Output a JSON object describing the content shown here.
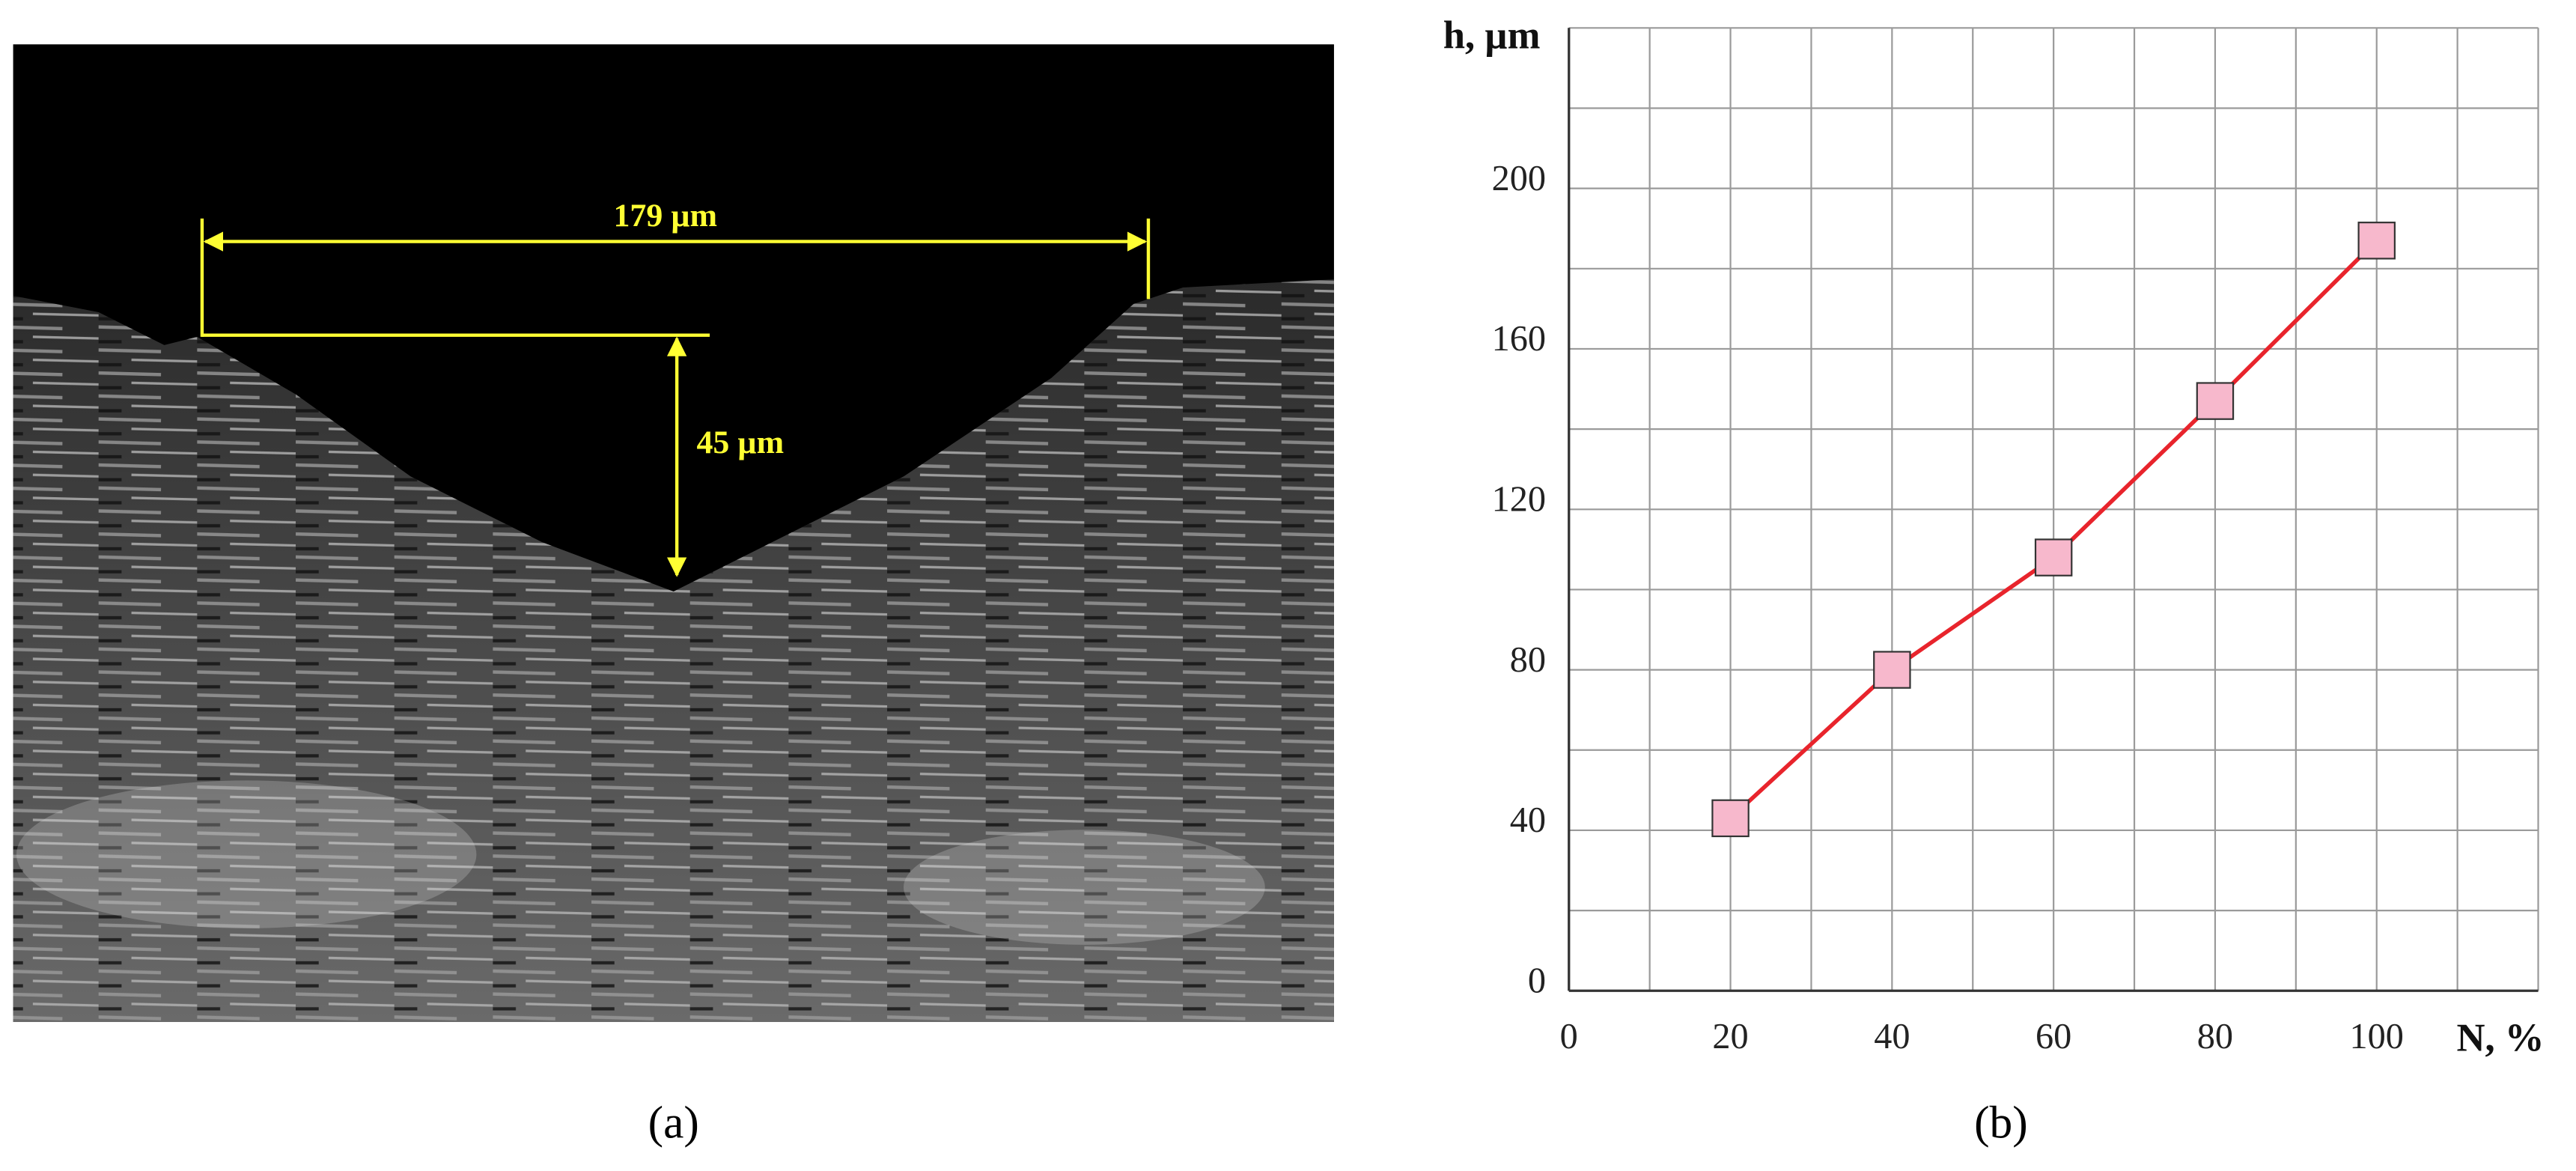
{
  "panels": [
    "(a)",
    "(b)"
  ],
  "micrograph": {
    "width_label": "179 µm",
    "depth_label": "45 µm"
  },
  "chart_data": {
    "type": "line",
    "y_label": "h, µm",
    "x_label": "N, %",
    "x": [
      20,
      40,
      60,
      80,
      100
    ],
    "series": [
      {
        "name": "h",
        "color": "#e8242c",
        "marker_color": "#f7b8cc",
        "values": [
          43,
          80,
          108,
          147,
          187
        ]
      }
    ],
    "xlim": [
      0,
      120
    ],
    "ylim": [
      0,
      240
    ],
    "xticks": [
      0,
      20,
      40,
      60,
      80,
      100
    ],
    "yticks": [
      0,
      40,
      80,
      120,
      160,
      200
    ],
    "grid": true,
    "xgrid": [
      0,
      10,
      20,
      30,
      40,
      50,
      60,
      70,
      80,
      90,
      100,
      110,
      120
    ],
    "ygrid": [
      0,
      20,
      40,
      60,
      80,
      100,
      120,
      140,
      160,
      180,
      200,
      220,
      240
    ]
  }
}
